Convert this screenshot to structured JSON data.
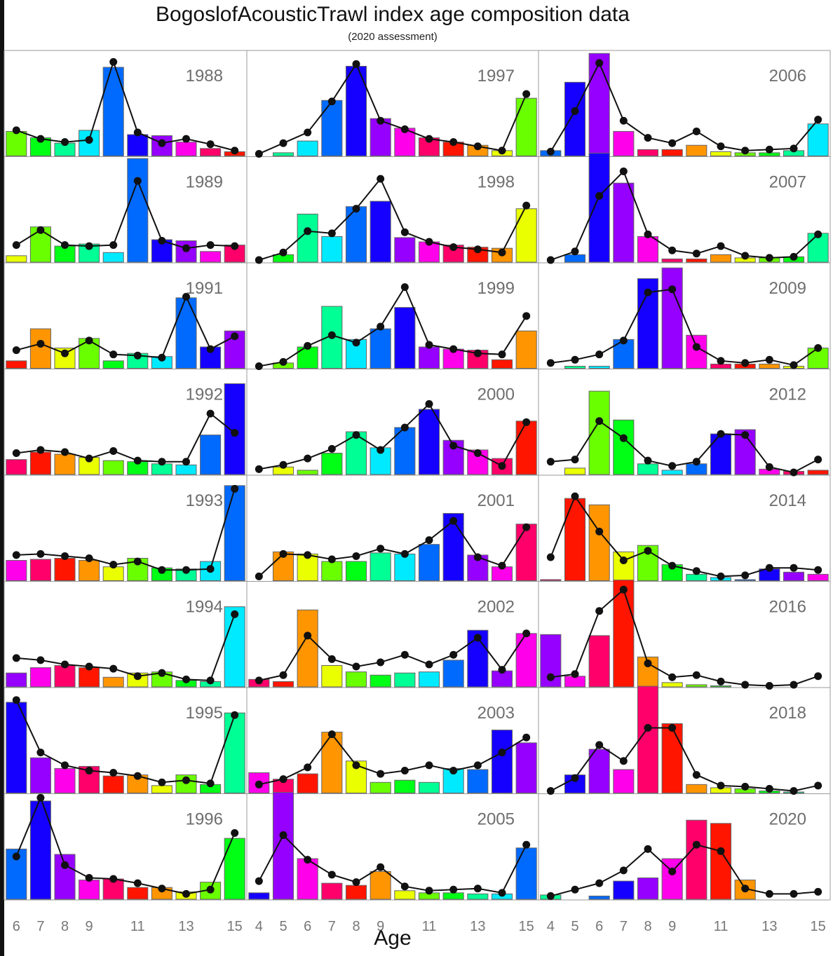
{
  "chart_data": {
    "type": "bar",
    "title": "BogoslofAcousticTrawl index age composition data",
    "subtitle": "(2020 assessment)",
    "xlabel": "Age",
    "ylabel": "",
    "grid": false,
    "overlay": "line with points (fitted proportions)",
    "column_ages": [
      [
        6,
        7,
        8,
        9,
        10,
        11,
        12,
        13,
        14,
        15
      ],
      [
        4,
        5,
        6,
        7,
        8,
        9,
        10,
        11,
        12,
        13,
        14,
        15
      ],
      [
        4,
        5,
        6,
        7,
        8,
        9,
        10,
        11,
        12,
        13,
        14,
        15
      ]
    ],
    "column_tick_labels": [
      [
        "6",
        "7",
        "8",
        "9",
        "11",
        "13",
        "15"
      ],
      [
        "4",
        "5",
        "6",
        "7",
        "8",
        "9",
        "11",
        "13",
        "15"
      ],
      [
        "4",
        "5",
        "6",
        "7",
        "8",
        "9",
        "11",
        "13",
        "15"
      ]
    ],
    "panels": [
      {
        "year": "1988",
        "col": 0,
        "row": 0,
        "bars": [
          0.23,
          0.17,
          0.12,
          0.24,
          0.83,
          0.2,
          0.19,
          0.13,
          0.07,
          0.04
        ],
        "fit": [
          0.24,
          0.16,
          0.13,
          0.15,
          0.88,
          0.22,
          0.12,
          0.16,
          0.11,
          0.05
        ]
      },
      {
        "year": "1989",
        "col": 0,
        "row": 1,
        "bars": [
          0.06,
          0.33,
          0.15,
          0.17,
          0.09,
          0.97,
          0.21,
          0.2,
          0.1,
          0.16
        ],
        "fit": [
          0.16,
          0.3,
          0.16,
          0.15,
          0.16,
          0.76,
          0.2,
          0.13,
          0.16,
          0.15
        ]
      },
      {
        "year": "1991",
        "col": 0,
        "row": 2,
        "bars": [
          0.07,
          0.37,
          0.19,
          0.28,
          0.07,
          0.14,
          0.11,
          0.66,
          0.2,
          0.35
        ],
        "fit": [
          0.17,
          0.23,
          0.14,
          0.26,
          0.13,
          0.12,
          0.1,
          0.67,
          0.18,
          0.3
        ]
      },
      {
        "year": "1992",
        "col": 0,
        "row": 3,
        "bars": [
          0.14,
          0.21,
          0.19,
          0.16,
          0.13,
          0.12,
          0.1,
          0.09,
          0.37,
          0.85
        ],
        "fit": [
          0.2,
          0.23,
          0.21,
          0.15,
          0.22,
          0.13,
          0.12,
          0.12,
          0.57,
          0.39
        ]
      },
      {
        "year": "1993",
        "col": 0,
        "row": 4,
        "bars": [
          0.19,
          0.2,
          0.21,
          0.19,
          0.13,
          0.21,
          0.12,
          0.11,
          0.18,
          0.89
        ],
        "fit": [
          0.24,
          0.25,
          0.23,
          0.21,
          0.15,
          0.18,
          0.1,
          0.1,
          0.11,
          0.86
        ]
      },
      {
        "year": "1994",
        "col": 0,
        "row": 5,
        "bars": [
          0.13,
          0.18,
          0.2,
          0.18,
          0.09,
          0.13,
          0.14,
          0.06,
          0.05,
          0.75
        ],
        "fit": [
          0.27,
          0.25,
          0.21,
          0.19,
          0.17,
          0.1,
          0.13,
          0.07,
          0.06,
          0.68
        ]
      },
      {
        "year": "1995",
        "col": 0,
        "row": 6,
        "bars": [
          0.85,
          0.33,
          0.23,
          0.25,
          0.16,
          0.17,
          0.07,
          0.17,
          0.08,
          0.75
        ],
        "fit": [
          0.87,
          0.38,
          0.26,
          0.21,
          0.19,
          0.16,
          0.1,
          0.12,
          0.09,
          0.73
        ]
      },
      {
        "year": "1996",
        "col": 0,
        "row": 7,
        "bars": [
          0.47,
          0.92,
          0.42,
          0.18,
          0.19,
          0.11,
          0.11,
          0.07,
          0.16,
          0.57
        ],
        "fit": [
          0.4,
          0.95,
          0.32,
          0.2,
          0.19,
          0.15,
          0.1,
          0.05,
          0.09,
          0.62
        ]
      },
      {
        "year": "1997",
        "col": 1,
        "row": 0,
        "bars": [
          0.0,
          0.03,
          0.14,
          0.52,
          0.84,
          0.35,
          0.26,
          0.17,
          0.13,
          0.1,
          0.05,
          0.54
        ],
        "fit": [
          0.02,
          0.12,
          0.22,
          0.51,
          0.86,
          0.33,
          0.25,
          0.16,
          0.13,
          0.09,
          0.05,
          0.58
        ]
      },
      {
        "year": "1998",
        "col": 1,
        "row": 1,
        "bars": [
          0.0,
          0.07,
          0.45,
          0.24,
          0.52,
          0.57,
          0.23,
          0.19,
          0.16,
          0.14,
          0.13,
          0.5
        ],
        "fit": [
          0.02,
          0.09,
          0.29,
          0.27,
          0.5,
          0.78,
          0.28,
          0.19,
          0.14,
          0.12,
          0.09,
          0.53
        ]
      },
      {
        "year": "1999",
        "col": 1,
        "row": 2,
        "bars": [
          0.0,
          0.05,
          0.2,
          0.58,
          0.27,
          0.37,
          0.57,
          0.2,
          0.18,
          0.17,
          0.08,
          0.35
        ],
        "fit": [
          0.02,
          0.06,
          0.21,
          0.31,
          0.24,
          0.39,
          0.76,
          0.22,
          0.18,
          0.14,
          0.13,
          0.49
        ]
      },
      {
        "year": "2000",
        "col": 1,
        "row": 3,
        "bars": [
          0.0,
          0.07,
          0.04,
          0.2,
          0.4,
          0.25,
          0.44,
          0.61,
          0.32,
          0.23,
          0.15,
          0.5
        ],
        "fit": [
          0.05,
          0.09,
          0.15,
          0.24,
          0.37,
          0.23,
          0.44,
          0.66,
          0.27,
          0.2,
          0.08,
          0.49
        ]
      },
      {
        "year": "2001",
        "col": 1,
        "row": 4,
        "bars": [
          0.0,
          0.27,
          0.25,
          0.18,
          0.18,
          0.26,
          0.25,
          0.34,
          0.63,
          0.24,
          0.13,
          0.53
        ],
        "fit": [
          0.04,
          0.25,
          0.24,
          0.2,
          0.23,
          0.3,
          0.25,
          0.38,
          0.56,
          0.22,
          0.14,
          0.5
        ]
      },
      {
        "year": "2002",
        "col": 1,
        "row": 5,
        "bars": [
          0.07,
          0.05,
          0.72,
          0.2,
          0.14,
          0.11,
          0.13,
          0.14,
          0.25,
          0.53,
          0.15,
          0.5
        ],
        "fit": [
          0.06,
          0.11,
          0.48,
          0.26,
          0.19,
          0.23,
          0.3,
          0.21,
          0.3,
          0.46,
          0.16,
          0.5
        ]
      },
      {
        "year": "2003",
        "col": 1,
        "row": 6,
        "bars": [
          0.19,
          0.13,
          0.18,
          0.57,
          0.3,
          0.1,
          0.12,
          0.1,
          0.23,
          0.22,
          0.59,
          0.47
        ],
        "fit": [
          0.08,
          0.13,
          0.24,
          0.55,
          0.26,
          0.18,
          0.21,
          0.26,
          0.21,
          0.26,
          0.38,
          0.52
        ]
      },
      {
        "year": "2005",
        "col": 1,
        "row": 7,
        "bars": [
          0.06,
          1.0,
          0.38,
          0.15,
          0.13,
          0.26,
          0.08,
          0.06,
          0.06,
          0.05,
          0.05,
          0.48
        ],
        "fit": [
          0.17,
          0.6,
          0.37,
          0.23,
          0.16,
          0.3,
          0.12,
          0.08,
          0.09,
          0.1,
          0.06,
          0.51
        ]
      },
      {
        "year": "2006",
        "col": 2,
        "row": 0,
        "bars": [
          0.05,
          0.69,
          0.96,
          0.23,
          0.06,
          0.06,
          0.1,
          0.04,
          0.03,
          0.03,
          0.05,
          0.3
        ],
        "fit": [
          0.04,
          0.42,
          0.87,
          0.33,
          0.17,
          0.12,
          0.23,
          0.09,
          0.05,
          0.06,
          0.07,
          0.34
        ]
      },
      {
        "year": "2007",
        "col": 2,
        "row": 1,
        "bars": [
          0.0,
          0.07,
          1.02,
          0.74,
          0.24,
          0.03,
          0.03,
          0.07,
          0.04,
          0.04,
          0.05,
          0.27
        ],
        "fit": [
          0.02,
          0.1,
          0.62,
          0.85,
          0.26,
          0.11,
          0.08,
          0.15,
          0.06,
          0.04,
          0.05,
          0.26
        ]
      },
      {
        "year": "2009",
        "col": 2,
        "row": 2,
        "bars": [
          0.0,
          0.02,
          0.02,
          0.27,
          0.84,
          0.94,
          0.31,
          0.04,
          0.04,
          0.04,
          0.02,
          0.19
        ],
        "fit": [
          0.05,
          0.08,
          0.13,
          0.26,
          0.71,
          0.74,
          0.2,
          0.07,
          0.05,
          0.08,
          0.03,
          0.19
        ]
      },
      {
        "year": "2012",
        "col": 2,
        "row": 3,
        "bars": [
          0.0,
          0.06,
          0.78,
          0.51,
          0.1,
          0.04,
          0.1,
          0.38,
          0.42,
          0.05,
          0.03,
          0.04
        ],
        "fit": [
          0.12,
          0.14,
          0.5,
          0.34,
          0.13,
          0.08,
          0.12,
          0.38,
          0.37,
          0.07,
          0.02,
          0.14
        ]
      },
      {
        "year": "2014",
        "col": 2,
        "row": 4,
        "bars": [
          0.01,
          0.77,
          0.71,
          0.27,
          0.33,
          0.15,
          0.06,
          0.03,
          0.01,
          0.11,
          0.08,
          0.06
        ],
        "fit": [
          0.22,
          0.79,
          0.46,
          0.19,
          0.28,
          0.14,
          0.09,
          0.04,
          0.05,
          0.12,
          0.12,
          0.1
        ]
      },
      {
        "year": "2016",
        "col": 2,
        "row": 5,
        "bars": [
          0.49,
          0.1,
          0.48,
          1.0,
          0.28,
          0.04,
          0.02,
          0.01,
          0.0,
          0.0,
          0.0,
          0.0
        ],
        "fit": [
          0.09,
          0.12,
          0.71,
          0.91,
          0.22,
          0.09,
          0.11,
          0.05,
          0.02,
          0.01,
          0.02,
          0.1
        ]
      },
      {
        "year": "2018",
        "col": 2,
        "row": 6,
        "bars": [
          0.0,
          0.17,
          0.41,
          0.22,
          1.0,
          0.65,
          0.08,
          0.05,
          0.04,
          0.02,
          0.01,
          0.0
        ],
        "fit": [
          0.02,
          0.14,
          0.45,
          0.3,
          0.61,
          0.61,
          0.17,
          0.07,
          0.06,
          0.04,
          0.02,
          0.07
        ]
      },
      {
        "year": "2020",
        "col": 2,
        "row": 7,
        "bars": [
          0.04,
          0.0,
          0.03,
          0.17,
          0.2,
          0.38,
          0.74,
          0.71,
          0.18,
          0.0,
          0.0,
          0.0
        ],
        "fit": [
          0.03,
          0.09,
          0.15,
          0.27,
          0.47,
          0.26,
          0.51,
          0.45,
          0.1,
          0.05,
          0.05,
          0.07
        ]
      }
    ]
  }
}
